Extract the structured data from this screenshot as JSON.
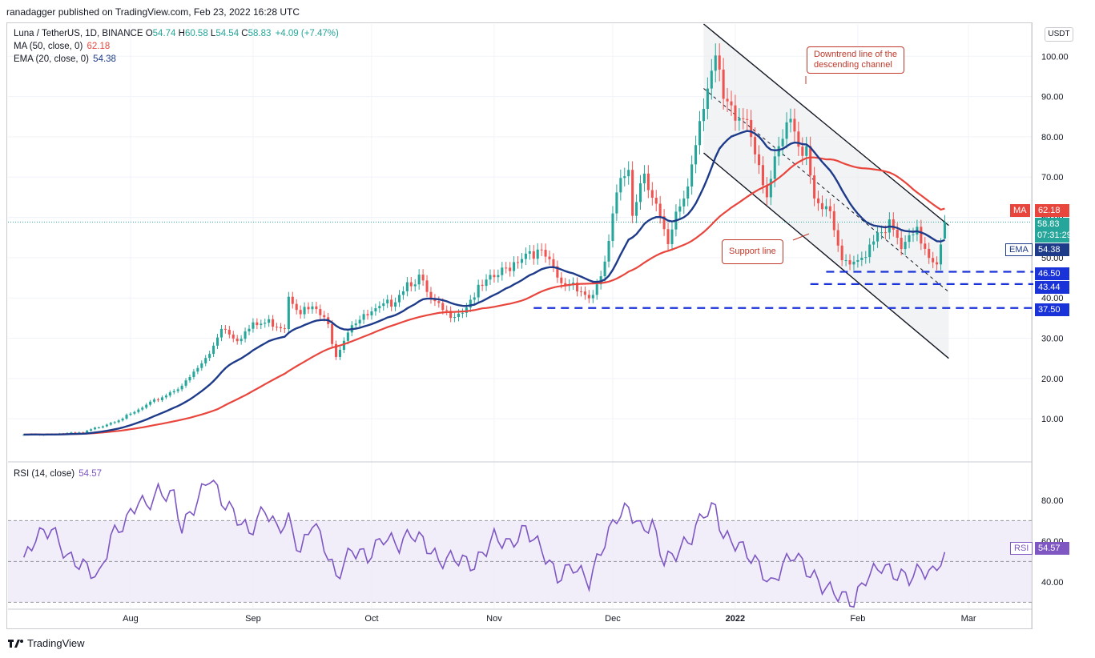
{
  "header": {
    "publisher": "ranadagger published on TradingView.com, Feb 23, 2022 16:28 UTC"
  },
  "legend": {
    "symbol": "Luna / TetherUS, 1D, BINANCE",
    "ohlc": [
      {
        "k": "O",
        "v": "54.74"
      },
      {
        "k": "H",
        "v": "60.58"
      },
      {
        "k": "L",
        "v": "54.54"
      },
      {
        "k": "C",
        "v": "58.83"
      }
    ],
    "change": "+4.09 (+7.47%)",
    "ma_label": "MA (50, close, 0)",
    "ma_value": "62.18",
    "ema_label": "EMA (20, close, 0)",
    "ema_value": "54.38",
    "rsi_label": "RSI (14, close)",
    "rsi_value": "54.57"
  },
  "currency": "USDT",
  "price_tags": {
    "ma_name": "MA",
    "ma_value": "62.18",
    "price": "58.83",
    "countdown": "07:31:29",
    "ema_name": "EMA",
    "ema_value": "54.38",
    "level_1": "46.50",
    "level_2": "43.44",
    "level_3": "37.50",
    "rsi_name": "RSI",
    "rsi_value": "54.57"
  },
  "annotations": {
    "downtrend_line1": "Downtrend line of the",
    "downtrend_line2": "descending channel",
    "support": "Support line"
  },
  "footer": {
    "brand": "TradingView"
  },
  "colors": {
    "up": "#26a69a",
    "down": "#ef5350",
    "ma": "#e8463d",
    "ema": "#1e3b8a",
    "rsi": "#7e57c2",
    "level": "#1a33d9",
    "rsi_band": "#ede7f6",
    "channel": "#e9ebef"
  },
  "chart_data": [
    {
      "type": "candlestick",
      "title": "Luna / TetherUS, 1D, BINANCE",
      "xlabel": "",
      "ylabel": "USDT",
      "x_ticks": [
        "Aug",
        "Sep",
        "Oct",
        "Nov",
        "Dec",
        "2022",
        "Feb",
        "Mar"
      ],
      "y_ticks": [
        10,
        20,
        30,
        40,
        50,
        60,
        70,
        80,
        90,
        100
      ],
      "ylim": [
        -0.5,
        108
      ],
      "close_anchors": [
        [
          "2021-07-05",
          6
        ],
        [
          "2021-07-20",
          6.5
        ],
        [
          "2021-08-01",
          11
        ],
        [
          "2021-08-10",
          16
        ],
        [
          "2021-08-15",
          19
        ],
        [
          "2021-08-21",
          26
        ],
        [
          "2021-08-24",
          33
        ],
        [
          "2021-08-28",
          30
        ],
        [
          "2021-09-01",
          33
        ],
        [
          "2021-09-05",
          34
        ],
        [
          "2021-09-09",
          33
        ],
        [
          "2021-09-10",
          41
        ],
        [
          "2021-09-13",
          37
        ],
        [
          "2021-09-17",
          37
        ],
        [
          "2021-09-20",
          33
        ],
        [
          "2021-09-22",
          26
        ],
        [
          "2021-09-26",
          34
        ],
        [
          "2021-09-29",
          35
        ],
        [
          "2021-10-03",
          37
        ],
        [
          "2021-10-06",
          39
        ],
        [
          "2021-10-10",
          44
        ],
        [
          "2021-10-13",
          45
        ],
        [
          "2021-10-16",
          39
        ],
        [
          "2021-10-20",
          36
        ],
        [
          "2021-10-24",
          37
        ],
        [
          "2021-10-27",
          41
        ],
        [
          "2021-11-01",
          45
        ],
        [
          "2021-11-04",
          47
        ],
        [
          "2021-11-07",
          50
        ],
        [
          "2021-11-10",
          52
        ],
        [
          "2021-11-14",
          50
        ],
        [
          "2021-11-18",
          43
        ],
        [
          "2021-11-21",
          44
        ],
        [
          "2021-11-25",
          40
        ],
        [
          "2021-11-28",
          44
        ],
        [
          "2021-11-30",
          54
        ],
        [
          "2021-12-02",
          65
        ],
        [
          "2021-12-05",
          73
        ],
        [
          "2021-12-06",
          62
        ],
        [
          "2021-12-09",
          72
        ],
        [
          "2021-12-12",
          63
        ],
        [
          "2021-12-15",
          52
        ],
        [
          "2021-12-17",
          60
        ],
        [
          "2021-12-20",
          68
        ],
        [
          "2021-12-23",
          85
        ],
        [
          "2021-12-25",
          94
        ],
        [
          "2021-12-27",
          99
        ],
        [
          "2021-12-29",
          88
        ],
        [
          "2022-01-01",
          84
        ],
        [
          "2022-01-04",
          85
        ],
        [
          "2022-01-06",
          78
        ],
        [
          "2022-01-09",
          66
        ],
        [
          "2022-01-12",
          76
        ],
        [
          "2022-01-15",
          84
        ],
        [
          "2022-01-17",
          76
        ],
        [
          "2022-01-19",
          79
        ],
        [
          "2022-01-21",
          65
        ],
        [
          "2022-01-24",
          63
        ],
        [
          "2022-01-26",
          56
        ],
        [
          "2022-01-28",
          49
        ],
        [
          "2022-01-30",
          47
        ],
        [
          "2022-02-02",
          50
        ],
        [
          "2022-02-06",
          57
        ],
        [
          "2022-02-09",
          58
        ],
        [
          "2022-02-12",
          52
        ],
        [
          "2022-02-16",
          56
        ],
        [
          "2022-02-19",
          51
        ],
        [
          "2022-02-21",
          49
        ],
        [
          "2022-02-22",
          54.74
        ],
        [
          "2022-02-23",
          58.83
        ]
      ],
      "series": [
        {
          "name": "MA (50, close, 0)",
          "last": 62.18
        },
        {
          "name": "EMA (20, close, 0)",
          "last": 54.38
        }
      ],
      "horizontal_levels": [
        46.5,
        43.44,
        37.5
      ],
      "channel": {
        "upper": [
          [
            "2021-12-24",
            108
          ],
          [
            "2022-02-24",
            58
          ]
        ],
        "lower": [
          [
            "2021-12-24",
            76
          ],
          [
            "2022-02-24",
            25
          ]
        ]
      },
      "last": {
        "open": 54.74,
        "high": 60.58,
        "low": 54.54,
        "close": 58.83,
        "change": 4.09,
        "change_pct": 7.47
      }
    },
    {
      "type": "line",
      "title": "RSI (14, close)",
      "y_ticks": [
        40,
        60,
        80
      ],
      "ylim": [
        27,
        96
      ],
      "bands": [
        30,
        50,
        70
      ],
      "anchors": [
        [
          "2021-07-05",
          50
        ],
        [
          "2021-07-08",
          62
        ],
        [
          "2021-07-12",
          66
        ],
        [
          "2021-07-16",
          52
        ],
        [
          "2021-07-21",
          47
        ],
        [
          "2021-07-24",
          42
        ],
        [
          "2021-07-27",
          62
        ],
        [
          "2021-07-31",
          70
        ],
        [
          "2021-08-03",
          80
        ],
        [
          "2021-08-05",
          77
        ],
        [
          "2021-08-08",
          84
        ],
        [
          "2021-08-12",
          82
        ],
        [
          "2021-08-14",
          66
        ],
        [
          "2021-08-18",
          80
        ],
        [
          "2021-08-21",
          92
        ],
        [
          "2021-08-24",
          80
        ],
        [
          "2021-08-27",
          74
        ],
        [
          "2021-08-31",
          64
        ],
        [
          "2021-09-04",
          76
        ],
        [
          "2021-09-07",
          66
        ],
        [
          "2021-09-10",
          70
        ],
        [
          "2021-09-13",
          54
        ],
        [
          "2021-09-16",
          70
        ],
        [
          "2021-09-19",
          58
        ],
        [
          "2021-09-22",
          42
        ],
        [
          "2021-09-26",
          56
        ],
        [
          "2021-09-30",
          52
        ],
        [
          "2021-10-04",
          62
        ],
        [
          "2021-10-08",
          58
        ],
        [
          "2021-10-11",
          64
        ],
        [
          "2021-10-14",
          60
        ],
        [
          "2021-10-18",
          50
        ],
        [
          "2021-10-22",
          52
        ],
        [
          "2021-10-27",
          48
        ],
        [
          "2021-11-01",
          62
        ],
        [
          "2021-11-05",
          58
        ],
        [
          "2021-11-09",
          66
        ],
        [
          "2021-11-13",
          56
        ],
        [
          "2021-11-17",
          42
        ],
        [
          "2021-11-21",
          48
        ],
        [
          "2021-11-25",
          40
        ],
        [
          "2021-11-29",
          60
        ],
        [
          "2021-12-02",
          72
        ],
        [
          "2021-12-05",
          76
        ],
        [
          "2021-12-08",
          66
        ],
        [
          "2021-12-11",
          68
        ],
        [
          "2021-12-14",
          50
        ],
        [
          "2021-12-17",
          54
        ],
        [
          "2021-12-21",
          62
        ],
        [
          "2021-12-24",
          74
        ],
        [
          "2021-12-27",
          76
        ],
        [
          "2021-12-29",
          62
        ],
        [
          "2022-01-02",
          58
        ],
        [
          "2022-01-07",
          48
        ],
        [
          "2022-01-10",
          38
        ],
        [
          "2022-01-13",
          48
        ],
        [
          "2022-01-16",
          54
        ],
        [
          "2022-01-19",
          46
        ],
        [
          "2022-01-23",
          38
        ],
        [
          "2022-01-27",
          34
        ],
        [
          "2022-01-31",
          30
        ],
        [
          "2022-02-03",
          42
        ],
        [
          "2022-02-07",
          48
        ],
        [
          "2022-02-10",
          44
        ],
        [
          "2022-02-14",
          42
        ],
        [
          "2022-02-17",
          46
        ],
        [
          "2022-02-20",
          44
        ],
        [
          "2022-02-23",
          54.57
        ]
      ]
    }
  ]
}
